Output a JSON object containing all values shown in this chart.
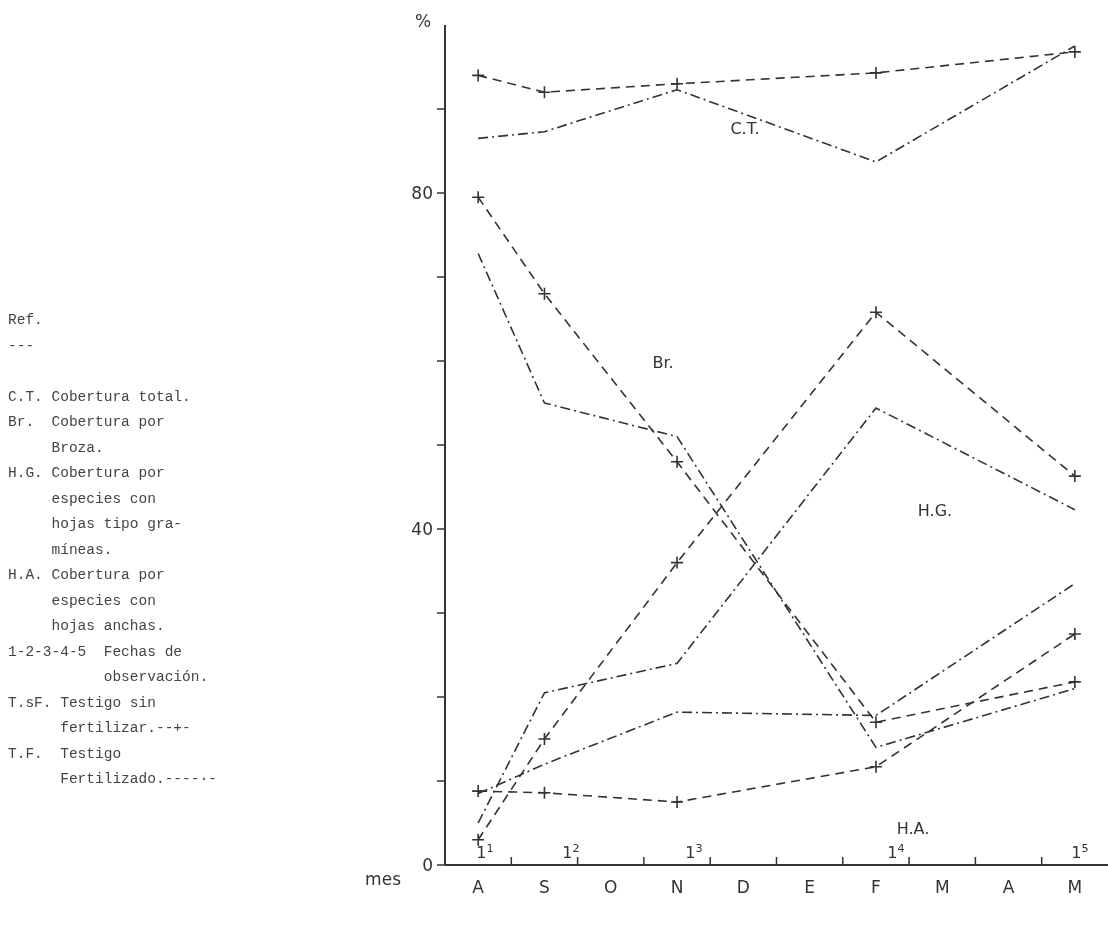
{
  "chart_data": {
    "type": "line",
    "ylabel": "%",
    "xlabel": "mes",
    "categories": [
      "A",
      "S",
      "O",
      "N",
      "D",
      "E",
      "F",
      "M",
      "A",
      "M"
    ],
    "ylim": [
      0,
      100
    ],
    "yticks": [
      0,
      {
        "value": 10,
        "label": null
      },
      {
        "value": 20,
        "label": null
      },
      {
        "value": 30,
        "label": null
      },
      40,
      {
        "value": 50,
        "label": null
      },
      {
        "value": 60,
        "label": null
      },
      {
        "value": 70,
        "label": null
      },
      80,
      {
        "value": 90,
        "label": null
      }
    ],
    "series": [
      {
        "color": "#333333",
        "line_style": "dashed",
        "marker": "cross",
        "values": [
          94,
          92,
          null,
          93,
          null,
          null,
          94.3,
          null,
          null,
          96.8
        ]
      },
      {
        "color": "#333333",
        "line_style": "dotted",
        "marker": "none",
        "values": [
          86.5,
          87.3,
          null,
          92.3,
          null,
          null,
          83.7,
          null,
          null,
          97.5
        ]
      },
      {
        "color": "#333333",
        "line_style": "dashed",
        "marker": "cross",
        "values": [
          79.5,
          68,
          null,
          48,
          null,
          null,
          17,
          null,
          null,
          21.8
        ]
      },
      {
        "color": "#333333",
        "line_style": "dotted",
        "marker": "none",
        "values": [
          72.8,
          55,
          null,
          51,
          null,
          null,
          14,
          null,
          null,
          21
        ]
      },
      {
        "color": "#333333",
        "line_style": "dashed",
        "marker": "cross",
        "values": [
          3,
          15,
          null,
          36,
          null,
          null,
          65.8,
          null,
          null,
          46.3
        ]
      },
      {
        "color": "#333333",
        "line_style": "dotted",
        "marker": "none",
        "values": [
          5,
          20.5,
          null,
          24,
          null,
          null,
          54.4,
          null,
          null,
          42.3
        ]
      },
      {
        "color": "#333333",
        "line_style": "dashed",
        "marker": "cross",
        "values": [
          8.8,
          8.6,
          null,
          7.5,
          null,
          null,
          11.7,
          null,
          null,
          27.5
        ]
      },
      {
        "color": "#333333",
        "line_style": "dotted",
        "marker": "none",
        "values": [
          8.5,
          12,
          null,
          18.2,
          null,
          null,
          17.8,
          null,
          null,
          33.5
        ]
      }
    ],
    "annotations": [
      "C.T.",
      "Br.",
      "H.G.",
      "H.A.",
      "1$^{1}$",
      "1$^{2}$",
      "1$^{3}$",
      "1$^{4}$",
      "1$^{5}$",
      "Ref.",
      "---",
      "C.T. Cobertura total.",
      "Br.  Cobertura por",
      "     Broza.",
      "H.G. Cobertura por",
      "     especies con",
      "     hojas tipo gra-",
      "     míneas.",
      "H.A. Cobertura por",
      "     especies con",
      "     hojas anchas.",
      "1-2-3-4-5  Fechas de",
      "           observación.",
      "T.sF. Testigo sin",
      "      fertilizar.--+-",
      "T.F.  Testigo",
      "      Fertilizado.----·-"
    ]
  }
}
